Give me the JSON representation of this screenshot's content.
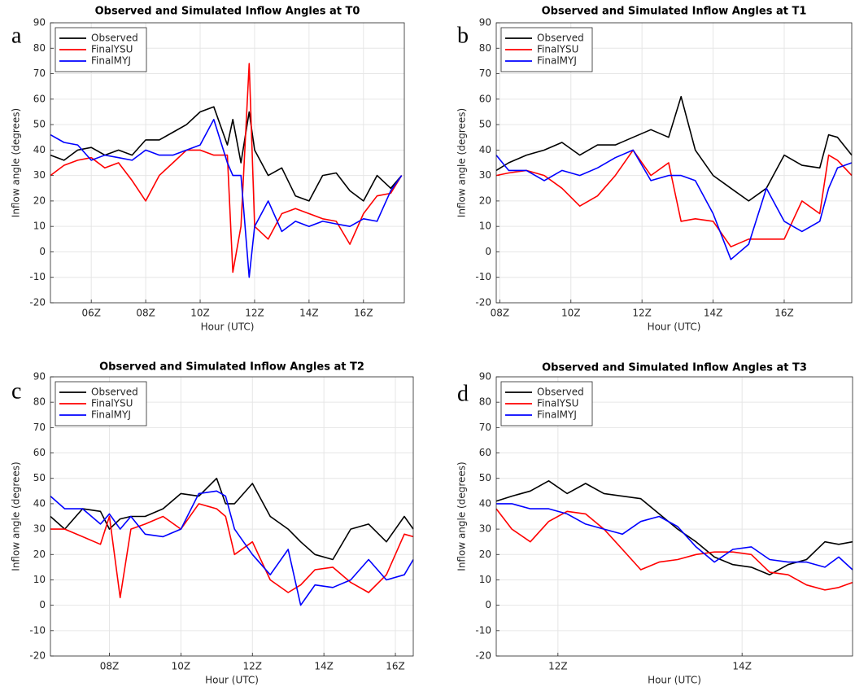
{
  "chart_data": [
    {
      "type": "line",
      "panel_label": "a",
      "title": "Observed and Simulated Inflow Angles at T0",
      "xlabel": "Hour (UTC)",
      "ylabel": "Inflow angle (degrees)",
      "grid": true,
      "legend": "upper left",
      "xlim": [
        4.5,
        17.5
      ],
      "ylim": [
        -20,
        90
      ],
      "xticks": [
        {
          "value": 6,
          "label": "06Z"
        },
        {
          "value": 8,
          "label": "08Z"
        },
        {
          "value": 10,
          "label": "10Z"
        },
        {
          "value": 12,
          "label": "12Z"
        },
        {
          "value": 14,
          "label": "14Z"
        },
        {
          "value": 16,
          "label": "16Z"
        }
      ],
      "yticks": [
        -20,
        -10,
        0,
        10,
        20,
        30,
        40,
        50,
        60,
        70,
        80,
        90
      ],
      "x": [
        4.5,
        5,
        5.5,
        6,
        6.5,
        7,
        7.5,
        8,
        8.5,
        9,
        9.5,
        10,
        10.5,
        11,
        11.2,
        11.5,
        11.8,
        12,
        12.5,
        13,
        13.5,
        14,
        14.5,
        15,
        15.5,
        16,
        16.5,
        17,
        17.4
      ],
      "series": [
        {
          "name": "Observed",
          "color": "#000000",
          "values": [
            38,
            36,
            40,
            41,
            38,
            40,
            38,
            44,
            44,
            47,
            50,
            55,
            57,
            42,
            52,
            35,
            55,
            40,
            30,
            33,
            22,
            20,
            30,
            31,
            24,
            20,
            30,
            25,
            30
          ]
        },
        {
          "name": "FinalYSU",
          "color": "#ff0000",
          "values": [
            30,
            34,
            36,
            37,
            33,
            35,
            28,
            20,
            30,
            35,
            40,
            40,
            38,
            38,
            -8,
            10,
            74,
            10,
            5,
            15,
            17,
            15,
            13,
            12,
            3,
            15,
            22,
            23,
            30
          ]
        },
        {
          "name": "FinalMYJ",
          "color": "#0000ff",
          "values": [
            46,
            43,
            42,
            36,
            38,
            37,
            36,
            40,
            38,
            38,
            40,
            42,
            52,
            35,
            30,
            30,
            -10,
            10,
            20,
            8,
            12,
            10,
            12,
            11,
            10,
            13,
            12,
            24,
            30
          ]
        }
      ]
    },
    {
      "type": "line",
      "panel_label": "b",
      "title": "Observed and Simulated Inflow Angles at T1",
      "xlabel": "Hour (UTC)",
      "ylabel": "Inflow angle (degrees)",
      "grid": true,
      "legend": "upper left",
      "xlim": [
        7.9,
        17.9
      ],
      "ylim": [
        -20,
        90
      ],
      "xticks": [
        {
          "value": 8,
          "label": "08Z"
        },
        {
          "value": 10,
          "label": "10Z"
        },
        {
          "value": 12,
          "label": "12Z"
        },
        {
          "value": 14,
          "label": "14Z"
        },
        {
          "value": 16,
          "label": "16Z"
        }
      ],
      "yticks": [
        -20,
        -10,
        0,
        10,
        20,
        30,
        40,
        50,
        60,
        70,
        80,
        90
      ],
      "x": [
        7.9,
        8.25,
        8.75,
        9.25,
        9.75,
        10.25,
        10.75,
        11.25,
        11.75,
        12.25,
        12.75,
        13.1,
        13.5,
        14,
        14.5,
        15,
        15.5,
        16,
        16.5,
        17,
        17.25,
        17.5,
        17.9
      ],
      "series": [
        {
          "name": "Observed",
          "color": "#000000",
          "values": [
            32,
            35,
            38,
            40,
            43,
            38,
            42,
            42,
            45,
            48,
            45,
            61,
            40,
            30,
            25,
            20,
            25,
            38,
            34,
            33,
            46,
            45,
            38
          ]
        },
        {
          "name": "FinalYSU",
          "color": "#ff0000",
          "values": [
            30,
            31,
            32,
            30,
            25,
            18,
            22,
            30,
            40,
            30,
            35,
            12,
            13,
            12,
            2,
            5,
            5,
            5,
            20,
            15,
            38,
            36,
            30
          ]
        },
        {
          "name": "FinalMYJ",
          "color": "#0000ff",
          "values": [
            38,
            32,
            32,
            28,
            32,
            30,
            33,
            37,
            40,
            28,
            30,
            30,
            28,
            15,
            -3,
            3,
            25,
            12,
            8,
            12,
            25,
            33,
            35
          ]
        }
      ]
    },
    {
      "type": "line",
      "panel_label": "c",
      "title": "Observed and Simulated Inflow Angles at T2",
      "xlabel": "Hour (UTC)",
      "ylabel": "Inflow angle (degrees)",
      "grid": true,
      "legend": "upper left",
      "xlim": [
        6.35,
        16.5
      ],
      "ylim": [
        -20,
        90
      ],
      "xticks": [
        {
          "value": 8,
          "label": "08Z"
        },
        {
          "value": 10,
          "label": "10Z"
        },
        {
          "value": 12,
          "label": "12Z"
        },
        {
          "value": 14,
          "label": "14Z"
        },
        {
          "value": 16,
          "label": "16Z"
        }
      ],
      "yticks": [
        -20,
        -10,
        0,
        10,
        20,
        30,
        40,
        50,
        60,
        70,
        80,
        90
      ],
      "x": [
        6.35,
        6.75,
        7.25,
        7.75,
        8,
        8.3,
        8.6,
        9,
        9.5,
        10,
        10.5,
        11,
        11.25,
        11.5,
        12,
        12.5,
        13,
        13.35,
        13.75,
        14.25,
        14.75,
        15.25,
        15.75,
        16.25,
        16.5
      ],
      "series": [
        {
          "name": "Observed",
          "color": "#000000",
          "values": [
            35,
            30,
            38,
            37,
            30,
            34,
            35,
            35,
            38,
            44,
            43,
            50,
            40,
            40,
            48,
            35,
            30,
            25,
            20,
            18,
            30,
            32,
            25,
            35,
            30
          ]
        },
        {
          "name": "FinalYSU",
          "color": "#ff0000",
          "values": [
            30,
            30,
            27,
            24,
            35,
            3,
            30,
            32,
            35,
            30,
            40,
            38,
            35,
            20,
            25,
            10,
            5,
            8,
            14,
            15,
            9,
            5,
            12,
            28,
            27
          ]
        },
        {
          "name": "FinalMYJ",
          "color": "#0000ff",
          "values": [
            43,
            38,
            38,
            32,
            36,
            30,
            35,
            28,
            27,
            30,
            44,
            45,
            43,
            30,
            20,
            12,
            22,
            0,
            8,
            7,
            10,
            18,
            10,
            12,
            18
          ]
        }
      ]
    },
    {
      "type": "line",
      "panel_label": "d",
      "title": "Observed and Simulated Inflow Angles at T3",
      "xlabel": "Hour (UTC)",
      "ylabel": "Inflow angle (degrees)",
      "grid": true,
      "legend": "upper left",
      "xlim": [
        11.33,
        15.2
      ],
      "ylim": [
        -20,
        90
      ],
      "xticks": [
        {
          "value": 12,
          "label": "12Z"
        },
        {
          "value": 14,
          "label": "14Z"
        }
      ],
      "yticks": [
        -20,
        -10,
        0,
        10,
        20,
        30,
        40,
        50,
        60,
        70,
        80,
        90
      ],
      "x": [
        11.33,
        11.5,
        11.7,
        11.9,
        12.1,
        12.3,
        12.5,
        12.7,
        12.9,
        13.1,
        13.3,
        13.5,
        13.7,
        13.9,
        14.1,
        14.3,
        14.5,
        14.7,
        14.9,
        15.05,
        15.2
      ],
      "series": [
        {
          "name": "Observed",
          "color": "#000000",
          "values": [
            41,
            43,
            45,
            49,
            44,
            48,
            44,
            43,
            42,
            36,
            30,
            25,
            19,
            16,
            15,
            12,
            16,
            18,
            25,
            24,
            25
          ]
        },
        {
          "name": "FinalYSU",
          "color": "#ff0000",
          "values": [
            38,
            30,
            25,
            33,
            37,
            36,
            30,
            22,
            14,
            17,
            18,
            20,
            21,
            21,
            20,
            13,
            12,
            8,
            6,
            7,
            9
          ]
        },
        {
          "name": "FinalMYJ",
          "color": "#0000ff",
          "values": [
            40,
            40,
            38,
            38,
            36,
            32,
            30,
            28,
            33,
            35,
            31,
            23,
            17,
            22,
            23,
            18,
            17,
            17,
            15,
            19,
            14
          ]
        }
      ]
    }
  ]
}
